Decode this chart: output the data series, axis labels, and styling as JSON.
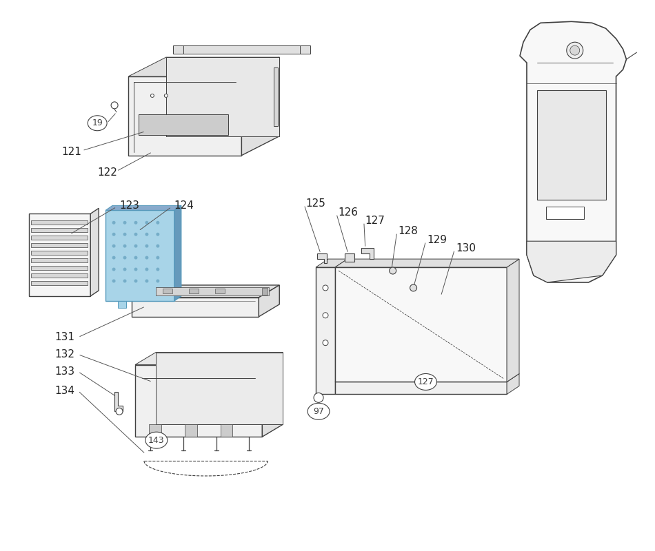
{
  "bg_color": "#ffffff",
  "line_color": "#404040",
  "label_color": "#222222",
  "blue_fill": "#a8d4e8",
  "blue_border": "#5599bb",
  "gray_fill": "#f0f0f0",
  "gray_mid": "#e0e0e0",
  "gray_dark": "#cccccc",
  "lw_main": 1.0,
  "lw_thin": 0.7,
  "label_fs": 11,
  "ann_lw": 0.7,
  "ann_color": "#555555"
}
